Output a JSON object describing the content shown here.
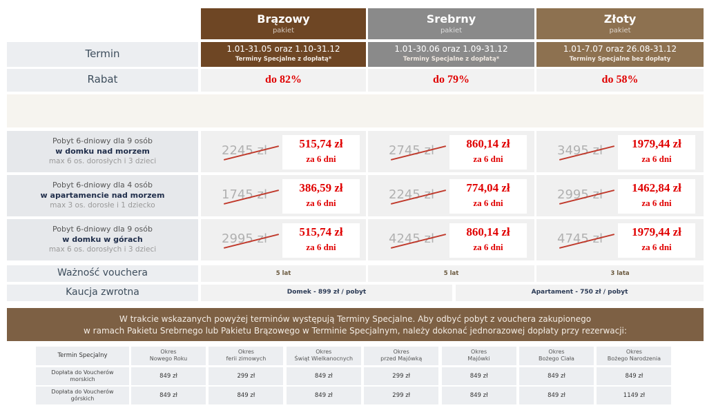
{
  "packages": [
    {
      "name": "Brązowy",
      "sub": "pakiet",
      "termin": "1.01-31.05 oraz 1.10-31.12",
      "termin_note": "Terminy Specjalne z dopłatą*",
      "rabat": "do 82%"
    },
    {
      "name": "Srebrny",
      "sub": "pakiet",
      "termin": "1.01-30.06 oraz 1.09-31.12",
      "termin_note": "Terminy Specjalne z dopłatą*",
      "rabat": "do 79%"
    },
    {
      "name": "Złoty",
      "sub": "pakiet",
      "termin": "1.01-7.07 oraz 26.08-31.12",
      "termin_note": "Terminy Specjalne bez dopłaty",
      "rabat": "do 58%"
    }
  ],
  "labels": {
    "termin": "Termin",
    "rabat": "Rabat"
  },
  "offers": [
    {
      "lines": [
        "Pobyt 6-dniowy dla 9 osób",
        "w domku nad morzem",
        "max 6 os. dorosłych i 3 dzieci"
      ],
      "prices": [
        {
          "old": "2245 zł",
          "new": "515,74 zł",
          "per": "za 6 dni"
        },
        {
          "old": "2745 zł",
          "new": "860,14 zł",
          "per": "za 6 dni"
        },
        {
          "old": "3495 zł",
          "new": "1979,44 zł",
          "per": "za 6 dni"
        }
      ]
    },
    {
      "lines": [
        "Pobyt 6-dniowy dla 4 osób",
        "w apartamencie nad morzem",
        "max 3 os. dorosłe i 1 dziecko"
      ],
      "prices": [
        {
          "old": "1745 zł",
          "new": "386,59 zł",
          "per": "za 6 dni"
        },
        {
          "old": "2245 zł",
          "new": "774,04 zł",
          "per": "za 6 dni"
        },
        {
          "old": "2995 zł",
          "new": "1462,84 zł",
          "per": "za 6 dni"
        }
      ]
    },
    {
      "lines": [
        "Pobyt 6-dniowy dla 9 osób",
        "w domku w górach",
        "max 6 os. dorosłych i 3 dzieci"
      ],
      "prices": [
        {
          "old": "2995 zł",
          "new": "515,74 zł",
          "per": "za 6 dni"
        },
        {
          "old": "4245 zł",
          "new": "860,14 zł",
          "per": "za 6 dni"
        },
        {
          "old": "4745 zł",
          "new": "1979,44 zł",
          "per": "za 6 dni"
        }
      ]
    }
  ],
  "validity": {
    "label": "Ważność vouchera",
    "values": [
      "5 lat",
      "5 lat",
      "3 lata"
    ]
  },
  "deposit": {
    "label": "Kaucja zwrotna",
    "values": [
      "Domek - 899 zł / pobyt",
      "Apartament - 750 zł / pobyt"
    ]
  },
  "notice": [
    "W trakcie wskazanych powyżej terminów występują Terminy Specjalne. Aby odbyć pobyt z vouchera zakupionego",
    "w ramach Pakietu Srebrnego lub Pakietu Brązowego w Terminie Specjalnym, należy dokonać jednorazowej dopłaty przy rezerwacji:"
  ],
  "special_table": {
    "header": "Termin Specjalny",
    "periods": [
      [
        "Okres",
        "Nowego Roku"
      ],
      [
        "Okres",
        "ferii zimowych"
      ],
      [
        "Okres",
        "Świąt Wielkanocnych"
      ],
      [
        "Okres",
        "przed Majówką"
      ],
      [
        "Okres",
        "Majówki"
      ],
      [
        "Okres",
        "Bożego Ciała"
      ],
      [
        "Okres",
        "Bożego Narodzenia"
      ]
    ],
    "rows": [
      {
        "label": [
          "Dopłata do Voucherów",
          "morskich"
        ],
        "values": [
          "849 zł",
          "299 zł",
          "849 zł",
          "299 zł",
          "849 zł",
          "849 zł",
          "849 zł"
        ]
      },
      {
        "label": [
          "Dopłata do Voucherów",
          "górskich"
        ],
        "values": [
          "849 zł",
          "849 zł",
          "849 zł",
          "299 zł",
          "849 zł",
          "849 zł",
          "1149 zł"
        ]
      }
    ]
  }
}
